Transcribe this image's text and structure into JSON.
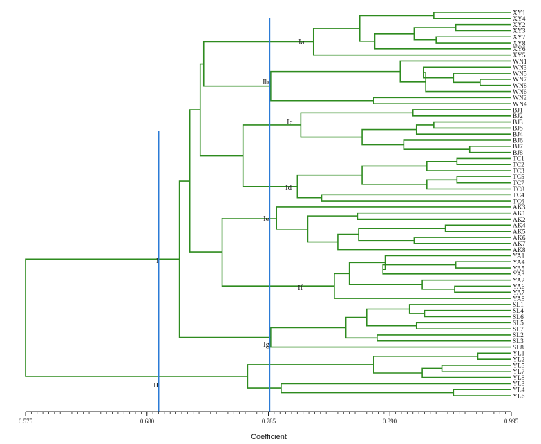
{
  "axis": {
    "title": "Coefficient",
    "min": 0.575,
    "max": 0.995,
    "ticks": [
      "0.575",
      "0.680",
      "0.785",
      "0.890",
      "0.995"
    ],
    "tick_values": [
      0.575,
      0.68,
      0.785,
      0.89,
      0.995
    ]
  },
  "colors": {
    "tree": "#2e8b1f",
    "cut": "#2b7bd6",
    "axis": "#222222"
  },
  "leaves": [
    "XY1",
    "XY4",
    "XY2",
    "XY3",
    "XY7",
    "XY8",
    "XY6",
    "XY5",
    "WN1",
    "WN3",
    "WN5",
    "WN7",
    "WN8",
    "WN6",
    "WN2",
    "WN4",
    "BJ1",
    "BJ2",
    "BJ3",
    "BJ5",
    "BJ4",
    "BJ6",
    "BJ7",
    "BJ8",
    "TC1",
    "TC2",
    "TC3",
    "TC5",
    "TC7",
    "TC8",
    "TC4",
    "TC6",
    "AK3",
    "AK1",
    "AK2",
    "AK4",
    "AK5",
    "AK6",
    "AK7",
    "AK8",
    "YA1",
    "YA4",
    "YA5",
    "YA3",
    "YA2",
    "YA6",
    "YA7",
    "YA8",
    "SL1",
    "SL4",
    "SL6",
    "SL5",
    "SL7",
    "SL2",
    "SL3",
    "SL8",
    "YL1",
    "YL2",
    "YL5",
    "YL7",
    "YL8",
    "YL3",
    "YL4",
    "YL6"
  ],
  "cut_values": [
    0.69,
    0.786
  ],
  "cluster_labels": [
    "I",
    "II",
    "Ia",
    "Ib",
    "Ic",
    "Id",
    "Ie",
    "If",
    "Ig"
  ],
  "merges": [
    {
      "id": "xy_a",
      "a": "XY1",
      "b": "XY4",
      "h": 0.928
    },
    {
      "id": "xy_b",
      "a": "XY2",
      "b": "XY3",
      "h": 0.947
    },
    {
      "id": "xy_c",
      "a": "XY7",
      "b": "XY8",
      "h": 0.93
    },
    {
      "id": "xy_d",
      "a": "xy_b",
      "b": "xy_c",
      "h": 0.911
    },
    {
      "id": "xy_e",
      "a": "xy_d",
      "b": "XY6",
      "h": 0.877
    },
    {
      "id": "xy_f",
      "a": "xy_a",
      "b": "xy_e",
      "h": 0.864
    },
    {
      "id": "Ia",
      "a": "xy_f",
      "b": "XY5",
      "h": 0.824
    },
    {
      "id": "wn_a",
      "a": "WN7",
      "b": "WN8",
      "h": 0.968
    },
    {
      "id": "wn_b",
      "a": "WN5",
      "b": "wn_a",
      "h": 0.945
    },
    {
      "id": "wn_c",
      "a": "WN3",
      "b": "wn_b",
      "h": 0.919
    },
    {
      "id": "wn_d",
      "a": "wn_c",
      "b": "WN6",
      "h": 0.921
    },
    {
      "id": "wn_e",
      "a": "WN1",
      "b": "wn_d",
      "h": 0.899
    },
    {
      "id": "wn_f",
      "a": "WN2",
      "b": "WN4",
      "h": 0.876
    },
    {
      "id": "Ib",
      "a": "wn_e",
      "b": "wn_f",
      "h": 0.787
    },
    {
      "id": "Ia_Ib",
      "a": "Ia",
      "b": "Ib",
      "h": 0.729
    },
    {
      "id": "bj_a",
      "a": "BJ1",
      "b": "BJ2",
      "h": 0.91
    },
    {
      "id": "bj_b",
      "a": "BJ3",
      "b": "BJ5",
      "h": 0.928
    },
    {
      "id": "bj_c",
      "a": "bj_b",
      "b": "BJ4",
      "h": 0.913
    },
    {
      "id": "bj_d",
      "a": "BJ7",
      "b": "BJ8",
      "h": 0.959
    },
    {
      "id": "bj_e",
      "a": "BJ6",
      "b": "bj_d",
      "h": 0.902
    },
    {
      "id": "bj_f",
      "a": "bj_c",
      "b": "bj_e",
      "h": 0.866
    },
    {
      "id": "Ic",
      "a": "bj_a",
      "b": "bj_f",
      "h": 0.813
    },
    {
      "id": "tc_a",
      "a": "TC1",
      "b": "TC2",
      "h": 0.948
    },
    {
      "id": "tc_b",
      "a": "tc_a",
      "b": "TC3",
      "h": 0.922
    },
    {
      "id": "tc_c",
      "a": "TC5",
      "b": "TC7",
      "h": 0.948
    },
    {
      "id": "tc_d",
      "a": "tc_c",
      "b": "TC8",
      "h": 0.922
    },
    {
      "id": "tc_e",
      "a": "tc_b",
      "b": "tc_d",
      "h": 0.866
    },
    {
      "id": "tc_f",
      "a": "TC4",
      "b": "TC6",
      "h": 0.831
    },
    {
      "id": "Id",
      "a": "tc_e",
      "b": "tc_f",
      "h": 0.81
    },
    {
      "id": "Ic_Id",
      "a": "Ic",
      "b": "Id",
      "h": 0.763
    },
    {
      "id": "Iabcd",
      "a": "Ia_Ib",
      "b": "Ic_Id",
      "h": 0.726
    },
    {
      "id": "ak_a",
      "a": "AK1",
      "b": "AK2",
      "h": 0.862
    },
    {
      "id": "ak_b",
      "a": "AK4",
      "b": "AK5",
      "h": 0.938
    },
    {
      "id": "ak_c",
      "a": "AK6",
      "b": "AK7",
      "h": 0.911
    },
    {
      "id": "ak_d",
      "a": "ak_b",
      "b": "ak_c",
      "h": 0.863
    },
    {
      "id": "ak_e",
      "a": "ak_d",
      "b": "AK8",
      "h": 0.845
    },
    {
      "id": "ak_f",
      "a": "ak_a",
      "b": "ak_e",
      "h": 0.819
    },
    {
      "id": "Ie",
      "a": "AK3",
      "b": "ak_f",
      "h": 0.792
    },
    {
      "id": "ya_a",
      "a": "YA4",
      "b": "YA5",
      "h": 0.947
    },
    {
      "id": "ya_b",
      "a": "ya_a",
      "b": "YA3",
      "h": 0.884
    },
    {
      "id": "ya_c",
      "a": "YA1",
      "b": "ya_b",
      "h": 0.886
    },
    {
      "id": "ya_d",
      "a": "YA6",
      "b": "YA7",
      "h": 0.946
    },
    {
      "id": "ya_e",
      "a": "YA2",
      "b": "ya_d",
      "h": 0.918
    },
    {
      "id": "ya_f",
      "a": "ya_c",
      "b": "ya_e",
      "h": 0.855
    },
    {
      "id": "If",
      "a": "ya_f",
      "b": "YA8",
      "h": 0.842
    },
    {
      "id": "Ie_If",
      "a": "Ie",
      "b": "If",
      "h": 0.745
    },
    {
      "id": "I_main",
      "a": "Iabcd",
      "b": "Ie_If",
      "h": 0.717
    },
    {
      "id": "sl_a",
      "a": "SL4",
      "b": "SL6",
      "h": 0.92
    },
    {
      "id": "sl_b",
      "a": "SL1",
      "b": "sl_a",
      "h": 0.907
    },
    {
      "id": "sl_c",
      "a": "SL5",
      "b": "SL7",
      "h": 0.913
    },
    {
      "id": "sl_d",
      "a": "sl_b",
      "b": "sl_c",
      "h": 0.87
    },
    {
      "id": "sl_e",
      "a": "SL2",
      "b": "SL3",
      "h": 0.879
    },
    {
      "id": "sl_f",
      "a": "sl_d",
      "b": "sl_e",
      "h": 0.852
    },
    {
      "id": "Ig",
      "a": "sl_f",
      "b": "SL8",
      "h": 0.787
    },
    {
      "id": "I",
      "a": "I_main",
      "b": "Ig",
      "h": 0.708
    },
    {
      "id": "yl_a",
      "a": "YL1",
      "b": "YL2",
      "h": 0.966
    },
    {
      "id": "yl_b",
      "a": "YL5",
      "b": "YL7",
      "h": 0.935
    },
    {
      "id": "yl_c",
      "a": "yl_b",
      "b": "YL8",
      "h": 0.918
    },
    {
      "id": "yl_d",
      "a": "yl_a",
      "b": "yl_c",
      "h": 0.876
    },
    {
      "id": "yl_e",
      "a": "YL4",
      "b": "YL6",
      "h": 0.945
    },
    {
      "id": "yl_f",
      "a": "YL3",
      "b": "yl_e",
      "h": 0.796
    },
    {
      "id": "II",
      "a": "yl_d",
      "b": "yl_f",
      "h": 0.767
    },
    {
      "id": "root",
      "a": "I",
      "b": "II",
      "h": 0.575
    }
  ]
}
